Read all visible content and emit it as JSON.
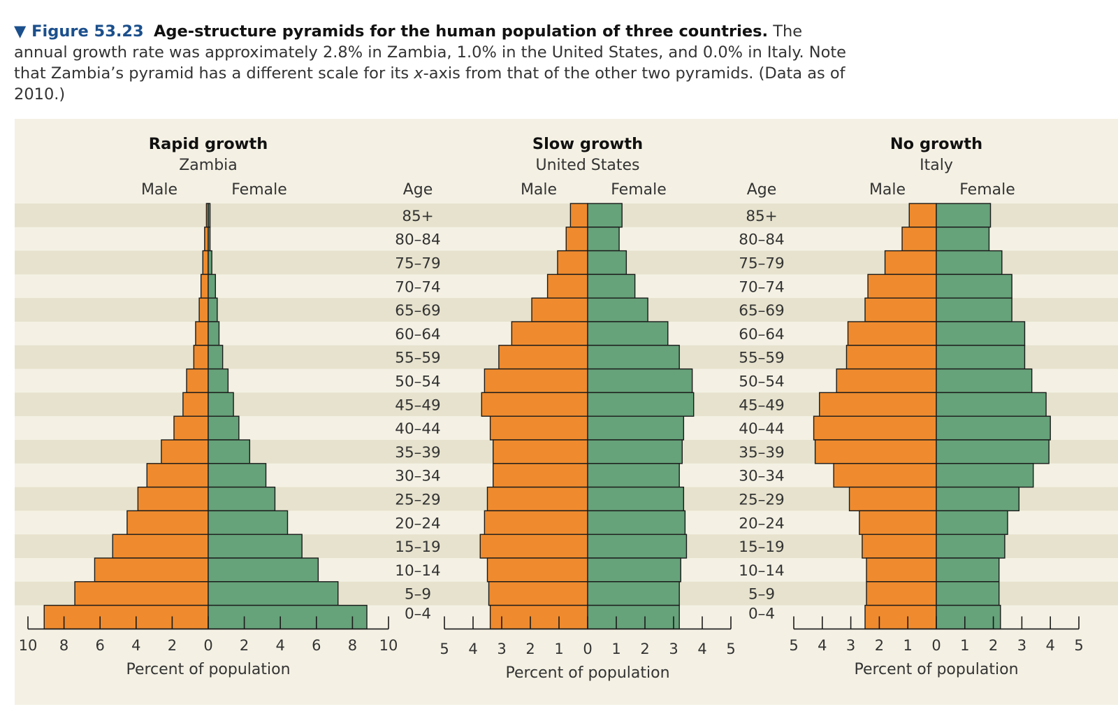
{
  "caption": {
    "figure_number": "▼ Figure 53.23",
    "title": "Age-structure pyramids for the human population of three countries.",
    "text_1": " The annual growth rate was approximately 2.8% in Zambia, 1.0% in the United States, and 0.0% in Italy. Note that Zambia’s pyramid has a different scale for its ",
    "text_italic": "x",
    "text_2": "-axis from that of the other two pyramids. (Data as of 2010.)"
  },
  "colors": {
    "male": "#ef8b2e",
    "female": "#66a27a",
    "band_dark": "#e6e2cd",
    "band_light": "#f4f1e4",
    "outline": "#1a1a1a"
  },
  "chart_data": [
    {
      "type": "bar",
      "orientation": "horizontal-pyramid",
      "title": "Rapid growth",
      "subtitle": "Zambia",
      "male_label": "Male",
      "female_label": "Female",
      "xlabel": "Percent of population",
      "xlim": [
        -10,
        10
      ],
      "xticks": [
        -10,
        -8,
        -6,
        -4,
        -2,
        0,
        2,
        4,
        6,
        8,
        10
      ],
      "xtick_labels": [
        "10",
        "8",
        "6",
        "4",
        "2",
        "0",
        "2",
        "4",
        "6",
        "8",
        "10"
      ],
      "categories": [
        "85+",
        "80–84",
        "75–79",
        "70–74",
        "65–69",
        "60–64",
        "55–59",
        "50–54",
        "45–49",
        "40–44",
        "35–39",
        "30–34",
        "25–29",
        "20–24",
        "15–19",
        "10–14",
        "5–9",
        "0–4"
      ],
      "series": [
        {
          "name": "Male",
          "values": [
            0.1,
            0.2,
            0.3,
            0.4,
            0.5,
            0.7,
            0.8,
            1.2,
            1.4,
            1.9,
            2.6,
            3.4,
            3.9,
            4.5,
            5.3,
            6.3,
            7.4,
            9.1
          ]
        },
        {
          "name": "Female",
          "values": [
            0.1,
            0.1,
            0.2,
            0.4,
            0.5,
            0.6,
            0.8,
            1.1,
            1.4,
            1.7,
            2.3,
            3.2,
            3.7,
            4.4,
            5.2,
            6.1,
            7.2,
            8.8
          ]
        }
      ]
    },
    {
      "type": "bar",
      "orientation": "horizontal-pyramid",
      "title": "Slow growth",
      "subtitle": "United States",
      "male_label": "Male",
      "female_label": "Female",
      "xlabel": "Percent of population",
      "xlim": [
        -5,
        5
      ],
      "xticks": [
        -5,
        -4,
        -3,
        -2,
        -1,
        0,
        1,
        2,
        3,
        4,
        5
      ],
      "xtick_labels": [
        "5",
        "4",
        "3",
        "2",
        "1",
        "0",
        "1",
        "2",
        "3",
        "4",
        "5"
      ],
      "categories": [
        "85+",
        "80–84",
        "75–79",
        "70–74",
        "65–69",
        "60–64",
        "55–59",
        "50–54",
        "45–49",
        "40–44",
        "35–39",
        "30–34",
        "25–29",
        "20–24",
        "15–19",
        "10–14",
        "5–9",
        "0–4"
      ],
      "series": [
        {
          "name": "Male",
          "values": [
            0.6,
            0.75,
            1.05,
            1.4,
            1.95,
            2.65,
            3.1,
            3.6,
            3.7,
            3.4,
            3.3,
            3.3,
            3.5,
            3.6,
            3.75,
            3.5,
            3.45,
            3.4
          ]
        },
        {
          "name": "Female",
          "values": [
            1.2,
            1.1,
            1.35,
            1.65,
            2.1,
            2.8,
            3.2,
            3.65,
            3.7,
            3.35,
            3.3,
            3.2,
            3.35,
            3.4,
            3.45,
            3.25,
            3.2,
            3.2
          ]
        }
      ]
    },
    {
      "type": "bar",
      "orientation": "horizontal-pyramid",
      "title": "No growth",
      "subtitle": "Italy",
      "male_label": "Male",
      "female_label": "Female",
      "xlabel": "Percent of population",
      "xlim": [
        -5,
        5
      ],
      "xticks": [
        -5,
        -4,
        -3,
        -2,
        -1,
        0,
        1,
        2,
        3,
        4,
        5
      ],
      "xtick_labels": [
        "5",
        "4",
        "3",
        "2",
        "1",
        "0",
        "1",
        "2",
        "3",
        "4",
        "5"
      ],
      "categories": [
        "85+",
        "80–84",
        "75–79",
        "70–74",
        "65–69",
        "60–64",
        "55–59",
        "50–54",
        "45–49",
        "40–44",
        "35–39",
        "30–34",
        "25–29",
        "20–24",
        "15–19",
        "10–14",
        "5–9",
        "0–4"
      ],
      "series": [
        {
          "name": "Male",
          "values": [
            0.95,
            1.2,
            1.8,
            2.4,
            2.5,
            3.1,
            3.15,
            3.5,
            4.1,
            4.3,
            4.25,
            3.6,
            3.05,
            2.7,
            2.6,
            2.45,
            2.45,
            2.5
          ]
        },
        {
          "name": "Female",
          "values": [
            1.9,
            1.85,
            2.3,
            2.65,
            2.65,
            3.1,
            3.1,
            3.35,
            3.85,
            4.0,
            3.95,
            3.4,
            2.9,
            2.5,
            2.4,
            2.2,
            2.2,
            2.25
          ]
        }
      ]
    }
  ],
  "age_labels": [
    {
      "title": "Age"
    },
    {
      "title": "Age"
    }
  ]
}
